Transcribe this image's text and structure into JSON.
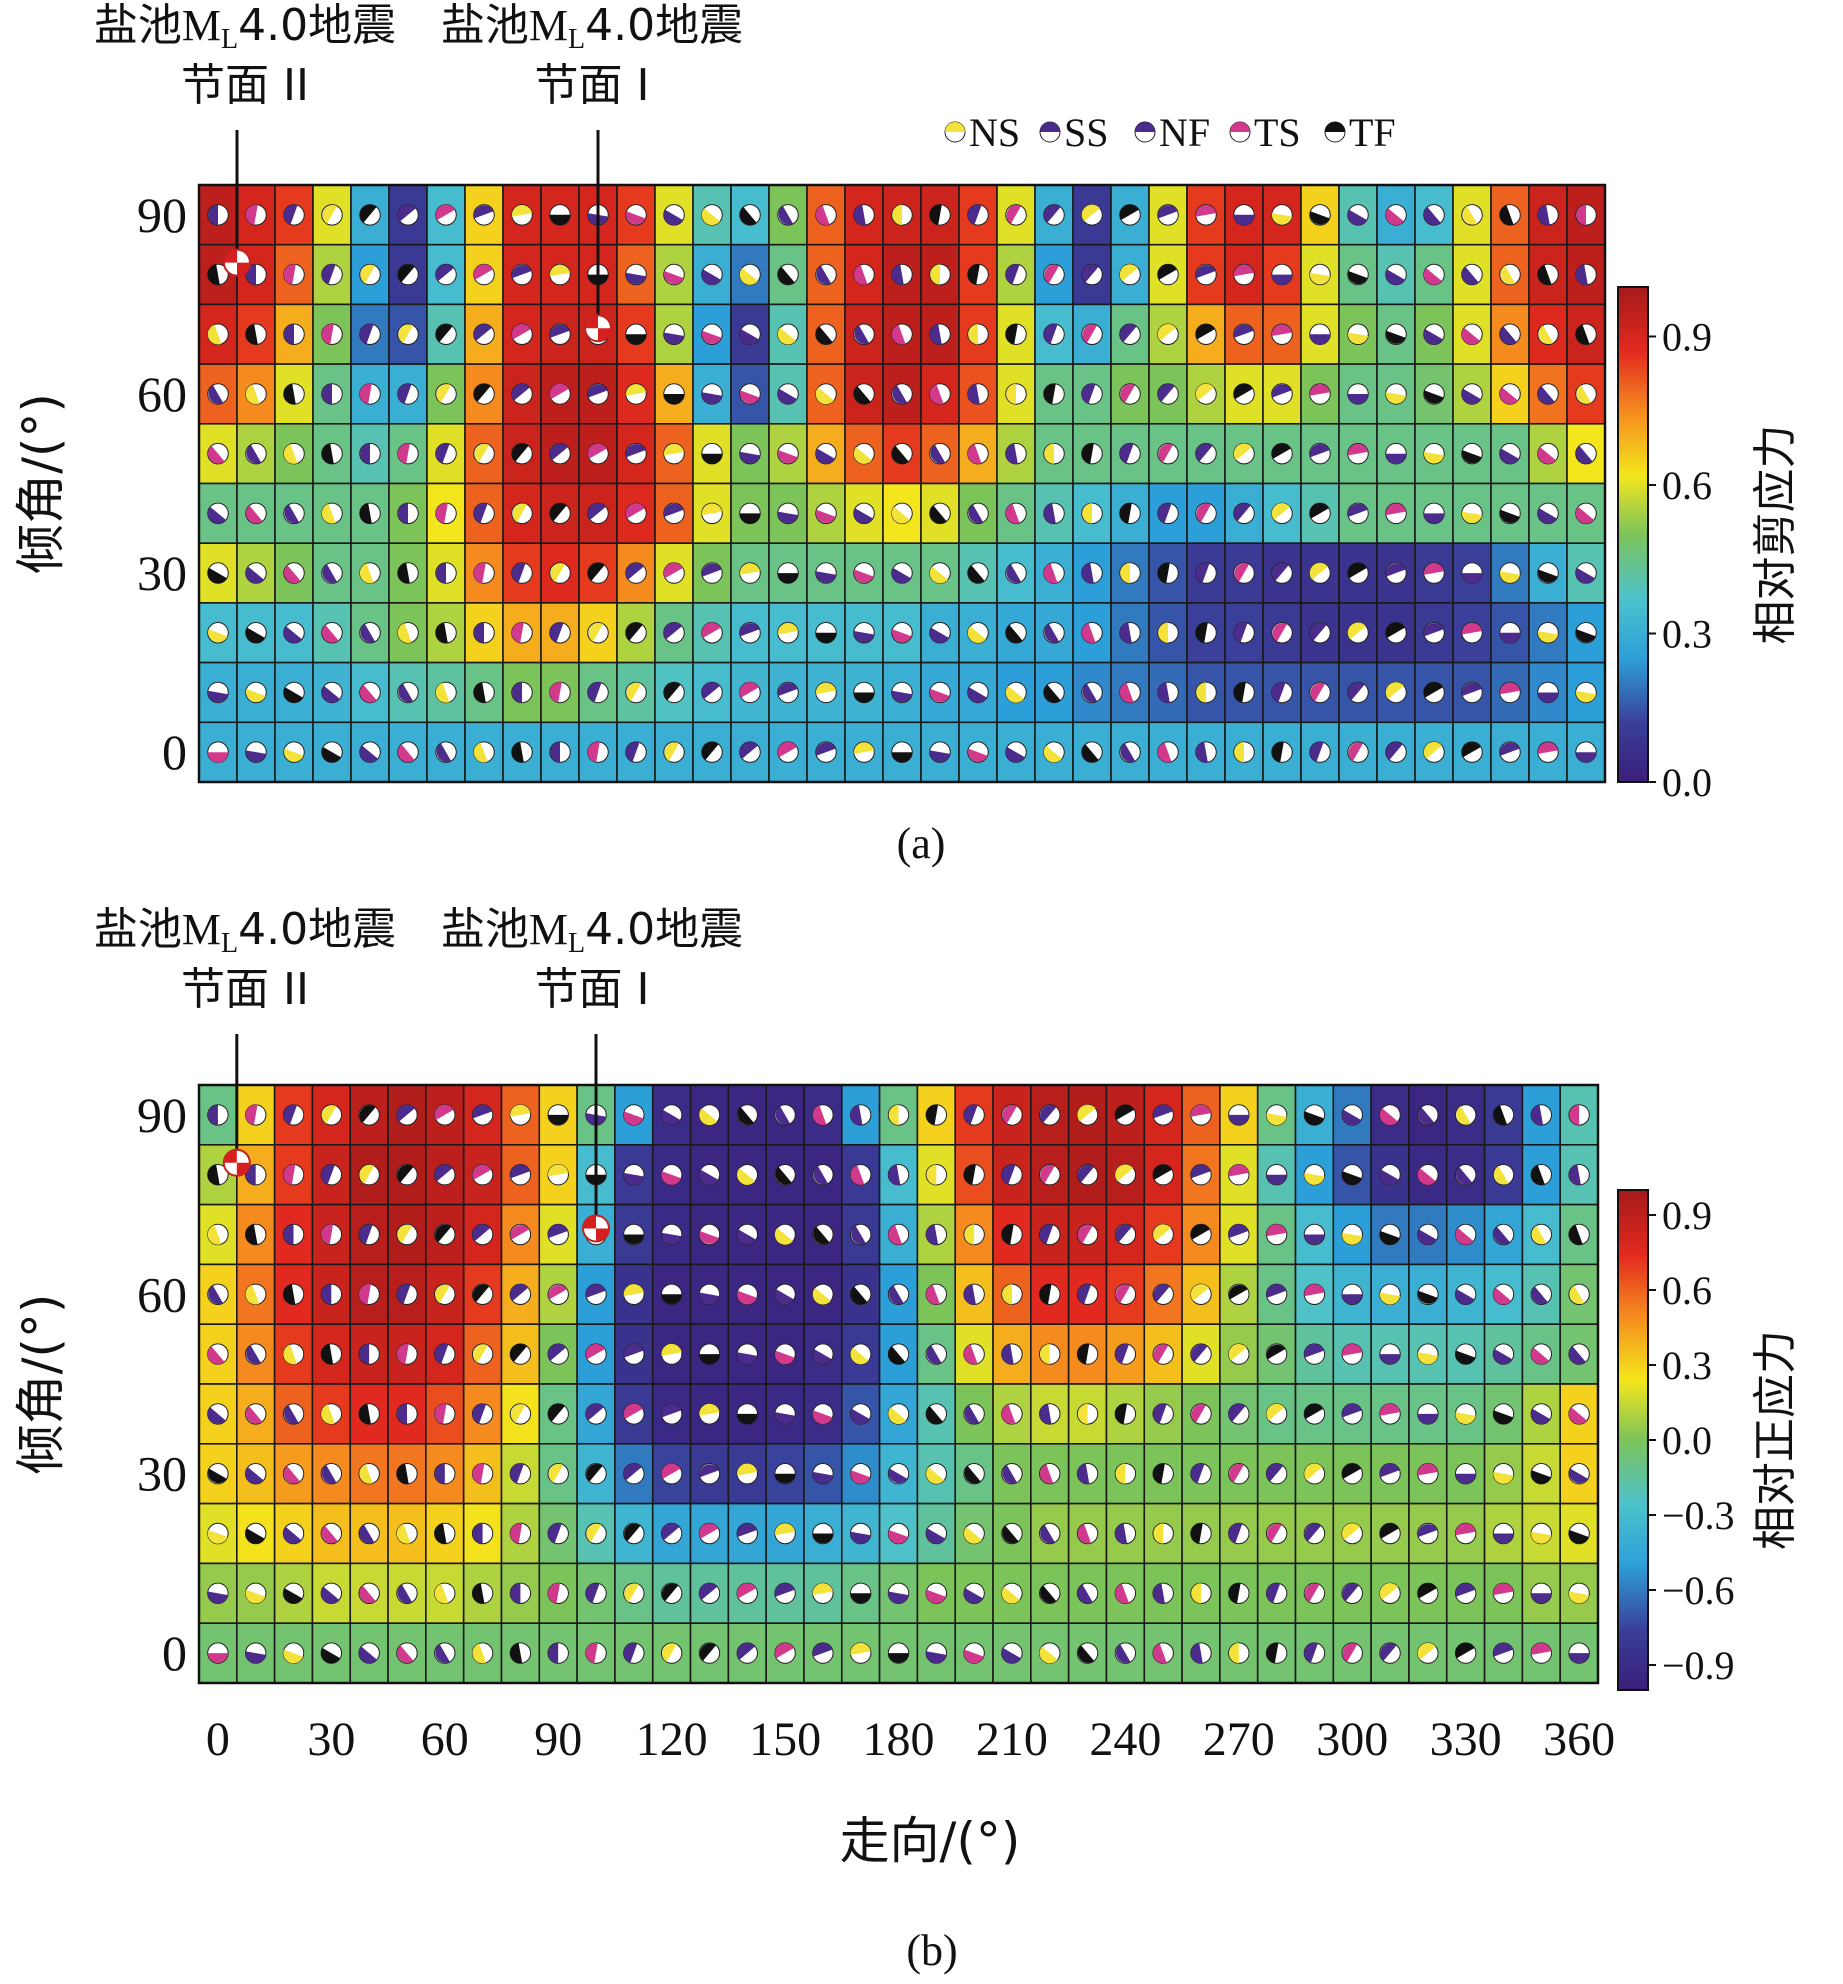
{
  "chart_data": [
    {
      "type": "heatmap",
      "panel_label": "(a)",
      "x": [
        0,
        10,
        20,
        30,
        40,
        50,
        60,
        70,
        80,
        90,
        100,
        110,
        120,
        130,
        140,
        150,
        160,
        170,
        180,
        190,
        200,
        210,
        220,
        230,
        240,
        250,
        260,
        270,
        280,
        290,
        300,
        310,
        320,
        330,
        340,
        350,
        360
      ],
      "y": [
        90,
        80,
        70,
        60,
        50,
        40,
        30,
        20,
        10,
        0
      ],
      "ylabel": "倾角/(°)",
      "y_ticks": [
        "90",
        "60",
        "30",
        "0"
      ],
      "colorbar_label": "相对剪应力",
      "colorbar_range": [
        0.0,
        1.0
      ],
      "colorbar_ticks": [
        "0.9",
        "0.6",
        "0.3",
        "0.0"
      ],
      "values": [
        [
          0.95,
          0.9,
          0.85,
          0.6,
          0.3,
          0.1,
          0.35,
          0.65,
          0.9,
          0.9,
          0.9,
          0.85,
          0.6,
          0.4,
          0.35,
          0.5,
          0.8,
          0.9,
          0.92,
          0.92,
          0.85,
          0.6,
          0.3,
          0.1,
          0.3,
          0.6,
          0.85,
          0.9,
          0.9,
          0.65,
          0.4,
          0.3,
          0.35,
          0.6,
          0.8,
          0.92,
          0.95
        ],
        [
          0.95,
          0.9,
          0.8,
          0.55,
          0.25,
          0.1,
          0.35,
          0.65,
          0.9,
          0.9,
          0.9,
          0.8,
          0.55,
          0.3,
          0.2,
          0.45,
          0.8,
          0.9,
          0.95,
          0.95,
          0.85,
          0.55,
          0.25,
          0.1,
          0.3,
          0.6,
          0.85,
          0.9,
          0.85,
          0.6,
          0.45,
          0.4,
          0.45,
          0.6,
          0.8,
          0.92,
          0.95
        ],
        [
          0.9,
          0.85,
          0.7,
          0.5,
          0.2,
          0.15,
          0.4,
          0.7,
          0.9,
          0.92,
          0.92,
          0.85,
          0.55,
          0.25,
          0.1,
          0.4,
          0.8,
          0.92,
          0.95,
          0.95,
          0.85,
          0.6,
          0.35,
          0.3,
          0.45,
          0.55,
          0.7,
          0.8,
          0.8,
          0.6,
          0.5,
          0.45,
          0.5,
          0.6,
          0.75,
          0.88,
          0.92
        ],
        [
          0.8,
          0.75,
          0.6,
          0.45,
          0.3,
          0.3,
          0.5,
          0.75,
          0.92,
          0.95,
          0.95,
          0.88,
          0.7,
          0.3,
          0.15,
          0.4,
          0.8,
          0.92,
          0.95,
          0.9,
          0.82,
          0.6,
          0.45,
          0.45,
          0.5,
          0.5,
          0.55,
          0.6,
          0.6,
          0.5,
          0.45,
          0.45,
          0.48,
          0.55,
          0.65,
          0.78,
          0.85
        ],
        [
          0.6,
          0.55,
          0.5,
          0.45,
          0.4,
          0.45,
          0.6,
          0.8,
          0.92,
          0.95,
          0.95,
          0.9,
          0.8,
          0.6,
          0.5,
          0.55,
          0.7,
          0.8,
          0.85,
          0.8,
          0.7,
          0.55,
          0.45,
          0.45,
          0.45,
          0.45,
          0.45,
          0.45,
          0.45,
          0.45,
          0.45,
          0.45,
          0.45,
          0.45,
          0.45,
          0.55,
          0.62
        ],
        [
          0.45,
          0.45,
          0.45,
          0.45,
          0.45,
          0.5,
          0.62,
          0.8,
          0.9,
          0.92,
          0.92,
          0.88,
          0.8,
          0.6,
          0.5,
          0.5,
          0.55,
          0.6,
          0.62,
          0.6,
          0.5,
          0.45,
          0.4,
          0.35,
          0.3,
          0.25,
          0.25,
          0.3,
          0.35,
          0.4,
          0.45,
          0.45,
          0.45,
          0.45,
          0.45,
          0.45,
          0.45
        ],
        [
          0.6,
          0.55,
          0.5,
          0.45,
          0.45,
          0.5,
          0.6,
          0.75,
          0.85,
          0.88,
          0.85,
          0.75,
          0.6,
          0.5,
          0.45,
          0.45,
          0.45,
          0.45,
          0.45,
          0.45,
          0.4,
          0.35,
          0.3,
          0.25,
          0.2,
          0.15,
          0.1,
          0.1,
          0.08,
          0.08,
          0.08,
          0.08,
          0.1,
          0.12,
          0.2,
          0.3,
          0.4
        ],
        [
          0.35,
          0.35,
          0.35,
          0.4,
          0.45,
          0.5,
          0.55,
          0.65,
          0.7,
          0.7,
          0.65,
          0.55,
          0.45,
          0.4,
          0.35,
          0.35,
          0.35,
          0.35,
          0.35,
          0.3,
          0.3,
          0.28,
          0.28,
          0.25,
          0.2,
          0.15,
          0.12,
          0.12,
          0.1,
          0.08,
          0.08,
          0.08,
          0.1,
          0.12,
          0.15,
          0.2,
          0.25
        ],
        [
          0.3,
          0.3,
          0.3,
          0.32,
          0.35,
          0.4,
          0.42,
          0.45,
          0.5,
          0.5,
          0.45,
          0.42,
          0.38,
          0.35,
          0.33,
          0.32,
          0.32,
          0.32,
          0.3,
          0.28,
          0.28,
          0.25,
          0.25,
          0.22,
          0.2,
          0.18,
          0.15,
          0.15,
          0.15,
          0.15,
          0.15,
          0.15,
          0.15,
          0.15,
          0.18,
          0.22,
          0.25
        ],
        [
          0.3,
          0.3,
          0.3,
          0.3,
          0.3,
          0.3,
          0.3,
          0.3,
          0.3,
          0.3,
          0.3,
          0.3,
          0.3,
          0.3,
          0.3,
          0.3,
          0.3,
          0.3,
          0.3,
          0.3,
          0.3,
          0.3,
          0.3,
          0.3,
          0.3,
          0.3,
          0.3,
          0.3,
          0.3,
          0.3,
          0.3,
          0.3,
          0.3,
          0.3,
          0.3,
          0.3,
          0.3
        ]
      ],
      "annotations": [
        {
          "text_line1": "盐池",
          "sub_main": "M",
          "sub_script": "L",
          "text_line1_tail": "4.0地震",
          "text_line2": "节面 II",
          "strike": 5,
          "dip": 82
        },
        {
          "text_line1": "盐池",
          "sub_main": "M",
          "sub_script": "L",
          "text_line1_tail": "4.0地震",
          "text_line2": "节面 I",
          "strike": 100,
          "dip": 71
        }
      ],
      "legend": [
        "NS",
        "SS",
        "NF",
        "TS",
        "TF"
      ],
      "legend_colors": [
        "#f2e23a",
        "#4b2b8c",
        "#4b2b8c",
        "#d13a8c",
        "#111111"
      ]
    },
    {
      "type": "heatmap",
      "panel_label": "(b)",
      "x": [
        0,
        10,
        20,
        30,
        40,
        50,
        60,
        70,
        80,
        90,
        100,
        110,
        120,
        130,
        140,
        150,
        160,
        170,
        180,
        190,
        200,
        210,
        220,
        230,
        240,
        250,
        260,
        270,
        280,
        290,
        300,
        310,
        320,
        330,
        340,
        350,
        360
      ],
      "y": [
        90,
        80,
        70,
        60,
        50,
        40,
        30,
        20,
        10,
        0
      ],
      "ylabel": "倾角/(°)",
      "xlabel": "走向/(°)",
      "x_ticks": [
        "0",
        "30",
        "60",
        "90",
        "120",
        "150",
        "180",
        "210",
        "240",
        "270",
        "300",
        "330",
        "360"
      ],
      "y_ticks": [
        "90",
        "60",
        "30",
        "0"
      ],
      "colorbar_label": "相对正应力",
      "colorbar_range": [
        -1.0,
        1.0
      ],
      "colorbar_ticks": [
        "0.9",
        "0.6",
        "0.3",
        "0.0",
        "−0.3",
        "−0.6",
        "−0.9"
      ],
      "values": [
        [
          -0.1,
          0.3,
          0.7,
          0.8,
          0.9,
          0.95,
          0.9,
          0.8,
          0.6,
          0.3,
          -0.1,
          -0.5,
          -0.9,
          -0.95,
          -0.95,
          -0.95,
          -0.9,
          -0.5,
          -0.1,
          0.3,
          0.7,
          0.85,
          0.92,
          0.95,
          0.9,
          0.8,
          0.6,
          0.3,
          -0.1,
          -0.4,
          -0.6,
          -0.9,
          -0.95,
          -0.9,
          -0.8,
          -0.5,
          -0.2
        ],
        [
          0.1,
          0.4,
          0.7,
          0.85,
          0.95,
          0.95,
          0.9,
          0.85,
          0.6,
          0.3,
          -0.3,
          -0.8,
          -0.92,
          -0.95,
          -0.95,
          -0.95,
          -0.95,
          -0.8,
          -0.3,
          0.2,
          0.65,
          0.85,
          0.92,
          0.95,
          0.92,
          0.8,
          0.55,
          0.2,
          -0.2,
          -0.5,
          -0.7,
          -0.85,
          -0.92,
          -0.9,
          -0.8,
          -0.5,
          -0.2
        ],
        [
          0.2,
          0.5,
          0.75,
          0.85,
          0.92,
          0.95,
          0.9,
          0.8,
          0.5,
          0.2,
          -0.4,
          -0.8,
          -0.92,
          -0.95,
          -0.95,
          -0.95,
          -0.95,
          -0.8,
          -0.4,
          0.1,
          0.5,
          0.75,
          0.85,
          0.85,
          0.8,
          0.7,
          0.5,
          0.2,
          -0.1,
          -0.3,
          -0.5,
          -0.6,
          -0.6,
          -0.55,
          -0.45,
          -0.3,
          -0.1
        ],
        [
          0.3,
          0.55,
          0.75,
          0.85,
          0.92,
          0.92,
          0.85,
          0.7,
          0.4,
          0.1,
          -0.5,
          -0.85,
          -0.95,
          -0.95,
          -0.95,
          -0.95,
          -0.95,
          -0.85,
          -0.5,
          0.0,
          0.35,
          0.6,
          0.75,
          0.75,
          0.7,
          0.55,
          0.35,
          0.1,
          -0.1,
          -0.25,
          -0.35,
          -0.4,
          -0.4,
          -0.35,
          -0.3,
          -0.2,
          -0.05
        ],
        [
          0.3,
          0.5,
          0.7,
          0.8,
          0.85,
          0.85,
          0.8,
          0.6,
          0.35,
          0.0,
          -0.5,
          -0.85,
          -0.95,
          -0.95,
          -0.95,
          -0.95,
          -0.9,
          -0.8,
          -0.5,
          -0.1,
          0.2,
          0.4,
          0.5,
          0.5,
          0.45,
          0.35,
          0.2,
          0.05,
          -0.05,
          -0.15,
          -0.2,
          -0.2,
          -0.2,
          -0.2,
          -0.15,
          -0.1,
          -0.05
        ],
        [
          0.3,
          0.4,
          0.6,
          0.7,
          0.75,
          0.75,
          0.65,
          0.5,
          0.25,
          -0.1,
          -0.45,
          -0.8,
          -0.92,
          -0.95,
          -0.95,
          -0.92,
          -0.9,
          -0.7,
          -0.45,
          -0.2,
          0.0,
          0.1,
          0.15,
          0.15,
          0.1,
          0.05,
          0.0,
          -0.05,
          -0.1,
          -0.1,
          -0.1,
          -0.1,
          -0.1,
          -0.1,
          -0.05,
          0.1,
          0.3
        ],
        [
          0.3,
          0.35,
          0.45,
          0.5,
          0.55,
          0.55,
          0.5,
          0.35,
          0.15,
          -0.1,
          -0.35,
          -0.6,
          -0.75,
          -0.8,
          -0.8,
          -0.75,
          -0.7,
          -0.55,
          -0.35,
          -0.2,
          -0.1,
          0.0,
          0.0,
          0.0,
          0.0,
          0.0,
          0.0,
          0.0,
          0.0,
          0.0,
          0.0,
          0.0,
          0.0,
          0.0,
          0.05,
          0.15,
          0.3
        ],
        [
          0.2,
          0.25,
          0.3,
          0.35,
          0.35,
          0.35,
          0.3,
          0.25,
          0.1,
          -0.05,
          -0.2,
          -0.35,
          -0.45,
          -0.45,
          -0.45,
          -0.45,
          -0.4,
          -0.35,
          -0.25,
          -0.15,
          -0.05,
          0.0,
          0.05,
          0.05,
          0.05,
          0.05,
          0.05,
          0.05,
          0.05,
          0.05,
          0.05,
          0.05,
          0.05,
          0.05,
          0.1,
          0.15,
          0.2
        ],
        [
          0.05,
          0.05,
          0.1,
          0.15,
          0.15,
          0.15,
          0.15,
          0.1,
          0.05,
          0.0,
          -0.05,
          -0.1,
          -0.15,
          -0.15,
          -0.15,
          -0.15,
          -0.15,
          -0.1,
          -0.05,
          0.0,
          0.0,
          0.0,
          0.0,
          0.0,
          0.0,
          0.0,
          0.0,
          0.0,
          0.0,
          0.0,
          0.0,
          0.0,
          0.0,
          0.0,
          0.0,
          0.05,
          0.05
        ],
        [
          -0.05,
          -0.05,
          -0.05,
          -0.05,
          -0.05,
          -0.05,
          -0.05,
          -0.05,
          -0.05,
          -0.05,
          -0.05,
          -0.05,
          -0.05,
          -0.05,
          -0.05,
          -0.05,
          -0.05,
          -0.05,
          -0.05,
          -0.05,
          -0.05,
          -0.05,
          -0.05,
          -0.05,
          -0.05,
          -0.05,
          -0.05,
          -0.05,
          -0.05,
          -0.05,
          -0.05,
          -0.05,
          -0.05,
          -0.05,
          -0.05,
          -0.05,
          -0.05
        ]
      ],
      "annotations": [
        {
          "text_line1": "盐池",
          "sub_main": "M",
          "sub_script": "L",
          "text_line1_tail": "4.0地震",
          "text_line2": "节面 II",
          "strike": 5,
          "dip": 82
        },
        {
          "text_line1": "盐池",
          "sub_main": "M",
          "sub_script": "L",
          "text_line1_tail": "4.0地震",
          "text_line2": "节面 I",
          "strike": 100,
          "dip": 71
        }
      ]
    }
  ]
}
